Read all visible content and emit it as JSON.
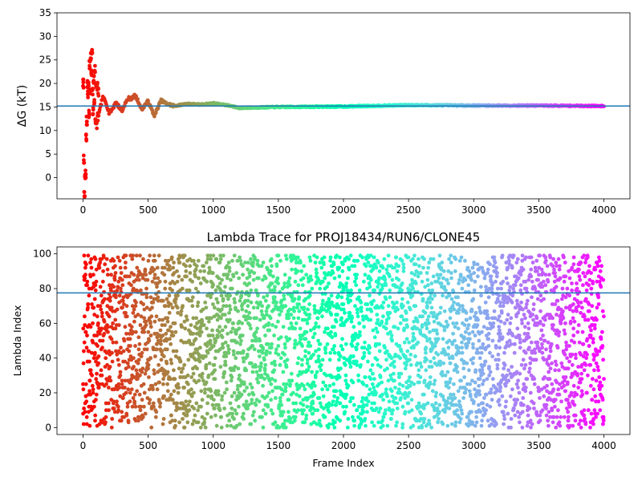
{
  "chart_data": [
    {
      "type": "scatter",
      "title": "",
      "xlabel": "",
      "ylabel": "ΔG (kT)",
      "ylabel_symbol": "ΔG",
      "ylabel_italic_part": "G",
      "ylabel_unit": "(kT)",
      "xlim": [
        -200,
        4200
      ],
      "ylim": [
        -4.5,
        35
      ],
      "xticks": [
        0,
        500,
        1000,
        1500,
        2000,
        2500,
        3000,
        3500,
        4000
      ],
      "yticks": [
        0,
        5,
        10,
        15,
        20,
        25,
        30,
        35
      ],
      "grid": false,
      "colormap": "rainbow-reversed (red at frame 0 to violet at frame 4000)",
      "reference_line": {
        "y": 15.2,
        "color": "#1f77b4"
      },
      "series": [
        {
          "points_description": "free energy estimate per frame",
          "x": [
            0,
            2,
            4,
            6,
            8,
            10,
            12,
            15,
            18,
            20,
            22,
            25,
            28,
            30,
            33,
            35,
            38,
            40,
            45,
            50,
            55,
            60,
            65,
            70,
            80,
            90,
            100,
            120,
            150,
            200,
            250,
            300,
            350,
            400,
            450,
            500,
            550,
            600,
            700,
            800,
            900,
            1000,
            1100,
            1200,
            1500,
            2000,
            2500,
            3000,
            3500,
            4000
          ],
          "y": [
            20.0,
            4.0,
            -4.0,
            0.0,
            0.8,
            8.5,
            12.0,
            20.0,
            17.5,
            19.8,
            13.5,
            23.8,
            18.5,
            26.0,
            22.0,
            26.5,
            18.0,
            14.0,
            21.0,
            16.0,
            23.0,
            12.0,
            20.0,
            11.0,
            19.5,
            13.0,
            18.0,
            14.0,
            16.5,
            13.5,
            16.8,
            13.5,
            17.0,
            17.8,
            14.0,
            16.5,
            13.2,
            16.2,
            15.2,
            15.7,
            15.5,
            15.8,
            15.4,
            14.8,
            15.0,
            15.1,
            15.4,
            15.3,
            15.3,
            15.2
          ]
        }
      ]
    },
    {
      "type": "scatter",
      "title": "Lambda Trace for PROJ18434/RUN6/CLONE45",
      "xlabel": "Frame Index",
      "ylabel": "Lambda Index",
      "xlim": [
        -200,
        4200
      ],
      "ylim": [
        -4,
        104
      ],
      "xticks": [
        0,
        500,
        1000,
        1500,
        2000,
        2500,
        3000,
        3500,
        4000
      ],
      "yticks": [
        0,
        20,
        40,
        60,
        80,
        100
      ],
      "grid": false,
      "colormap": "rainbow-reversed (red at frame 0 to violet at frame 4000)",
      "reference_line": {
        "y": 77.5,
        "color": "#1f77b4"
      },
      "series": [
        {
          "points_description": "lambda window index visited per frame, roughly uniform over 0-99 for frames 0-4000",
          "frame_range": [
            0,
            4000
          ],
          "lambda_range": [
            0,
            99
          ],
          "point_count": 4000
        }
      ]
    }
  ]
}
